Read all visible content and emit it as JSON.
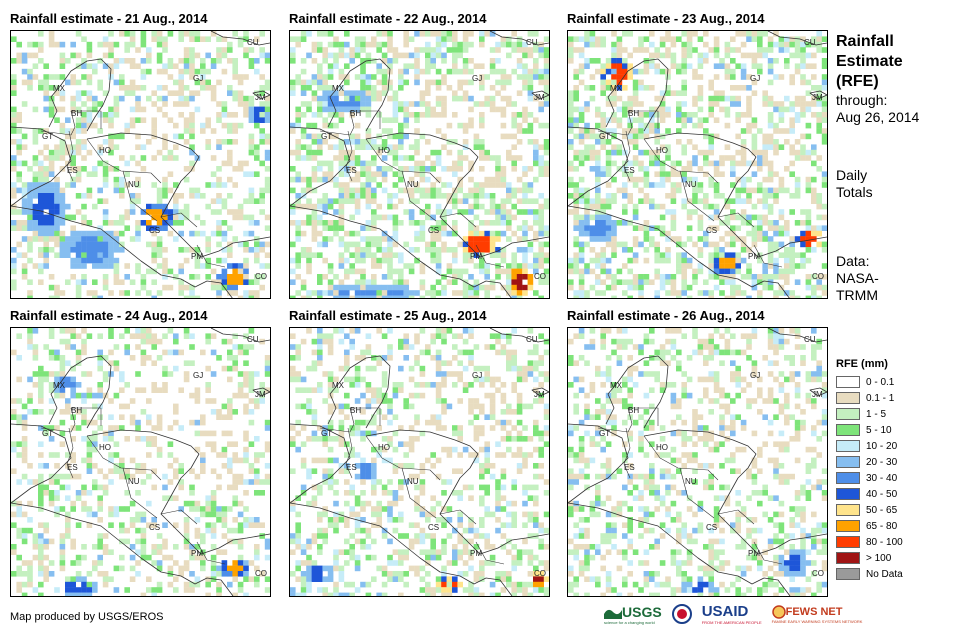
{
  "panels": [
    {
      "title": "Rainfall estimate - 21 Aug., 2014"
    },
    {
      "title": "Rainfall estimate - 22 Aug., 2014"
    },
    {
      "title": "Rainfall estimate - 23 Aug., 2014"
    },
    {
      "title": "Rainfall estimate - 24 Aug., 2014"
    },
    {
      "title": "Rainfall estimate - 25 Aug., 2014"
    },
    {
      "title": "Rainfall estimate - 26 Aug., 2014"
    }
  ],
  "region_labels": [
    "CU",
    "GJ",
    "JM",
    "MX",
    "BH",
    "GT",
    "HO",
    "ES",
    "NU",
    "CS",
    "PM",
    "CO"
  ],
  "side": {
    "title_line1": "Rainfall",
    "title_line2": "Estimate",
    "title_line3": "(RFE)",
    "through": "through:",
    "date": "Aug 26, 2014",
    "daily1": "Daily",
    "daily2": "Totals",
    "data1": "Data:",
    "data2": "NASA-",
    "data3": "TRMM"
  },
  "legend": {
    "title": "RFE (mm)",
    "items": [
      {
        "label": "0 - 0.1",
        "color": "#ffffff"
      },
      {
        "label": "0.1 - 1",
        "color": "#e8dcc0"
      },
      {
        "label": "1 - 5",
        "color": "#c4f0c0"
      },
      {
        "label": "5 - 10",
        "color": "#7ee47a"
      },
      {
        "label": "10 - 20",
        "color": "#c6ecf8"
      },
      {
        "label": "20 - 30",
        "color": "#86bef0"
      },
      {
        "label": "30 - 40",
        "color": "#4e8ee8"
      },
      {
        "label": "40 - 50",
        "color": "#1e56d8"
      },
      {
        "label": "50 - 65",
        "color": "#ffe48c"
      },
      {
        "label": "65 - 80",
        "color": "#ffa200"
      },
      {
        "label": "80 - 100",
        "color": "#ff3c00"
      },
      {
        "label": "> 100",
        "color": "#a01414"
      },
      {
        "label": "No Data",
        "color": "#9a9a9a"
      }
    ]
  },
  "credit": "Map produced by USGS/EROS",
  "logos": {
    "usgs": "USGS",
    "usgs_tag": "science for a changing world",
    "usaid": "USAID",
    "usaid_tag": "FROM THE AMERICAN PEOPLE",
    "fews": "FEWS NET",
    "fews_tag": "FAMINE EARLY WARNING SYSTEMS NETWORK"
  }
}
